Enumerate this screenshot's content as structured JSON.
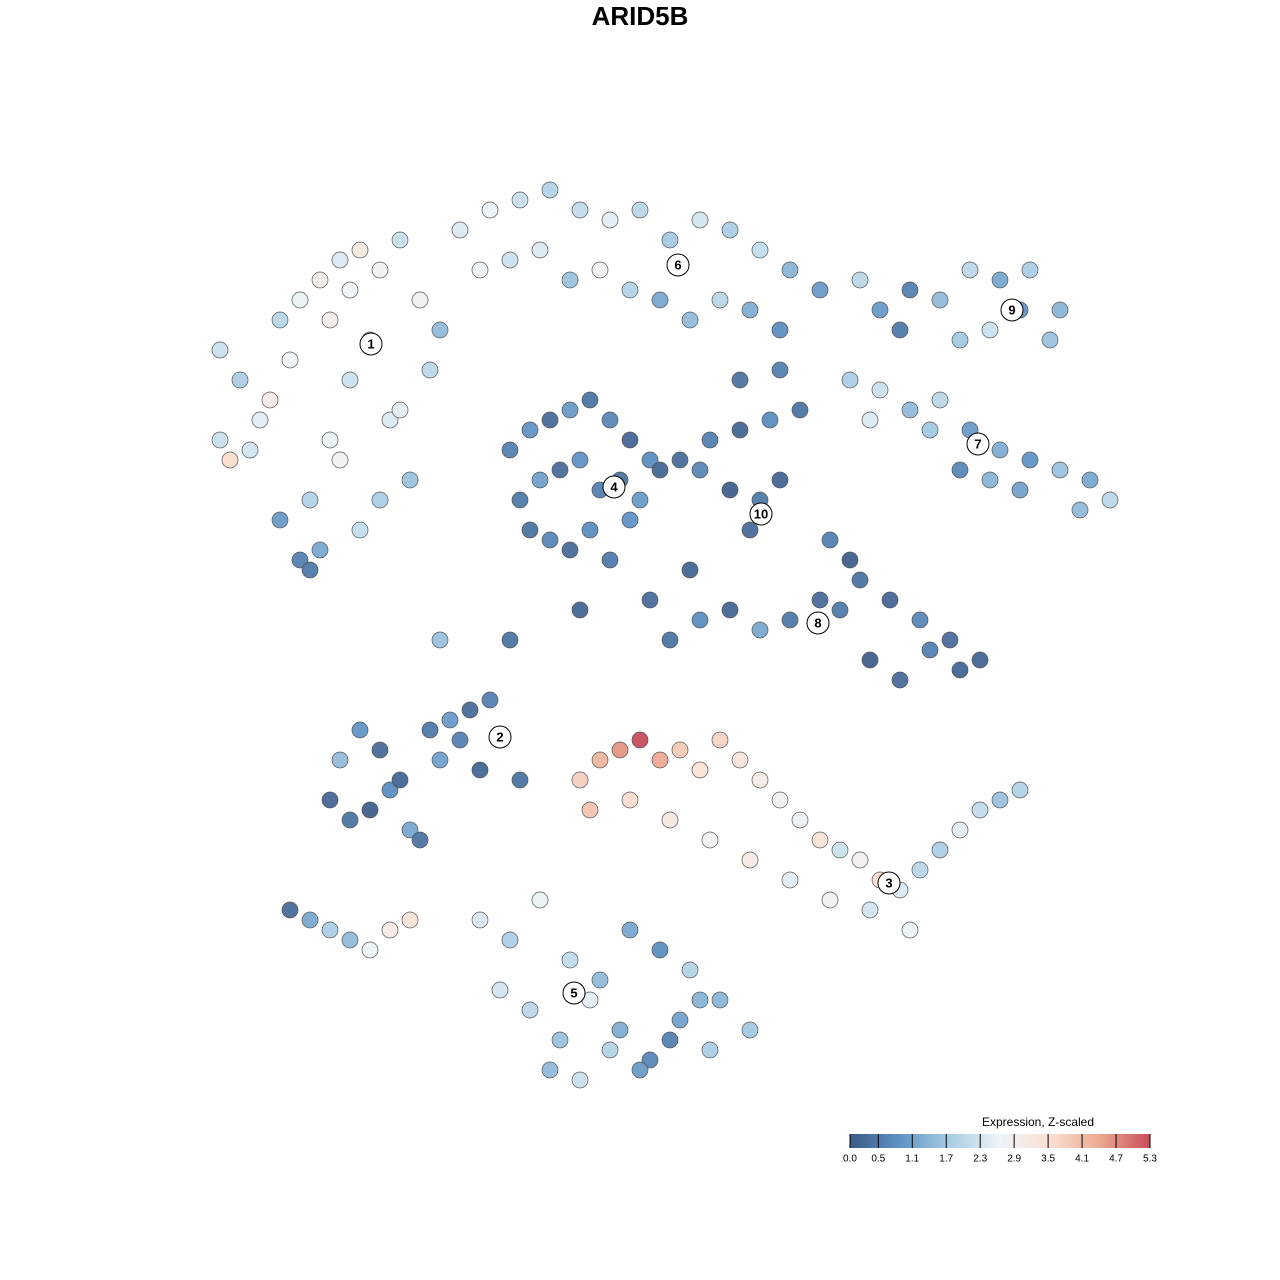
{
  "chart_data": {
    "type": "scatter",
    "title": "ARID5B",
    "xlim": [
      0,
      128
    ],
    "ylim": [
      128,
      0
    ],
    "x": [
      22,
      24,
      26,
      28,
      30,
      32,
      34,
      36,
      38,
      40,
      42,
      44,
      25,
      27,
      29,
      31,
      33,
      35,
      37,
      39,
      41,
      43,
      28,
      30,
      32,
      34,
      36,
      38,
      40,
      33,
      35,
      31,
      22,
      23,
      46,
      49,
      52,
      55,
      58,
      61,
      64,
      67,
      70,
      73,
      76,
      79,
      82,
      48,
      51,
      54,
      57,
      60,
      63,
      66,
      69,
      72,
      75,
      78,
      88,
      91,
      94,
      97,
      100,
      103,
      106,
      90,
      96,
      99,
      102,
      105,
      85,
      88,
      91,
      94,
      97,
      100,
      103,
      106,
      109,
      111,
      87,
      93,
      96,
      99,
      102,
      108,
      51,
      53,
      55,
      57,
      59,
      61,
      63,
      65,
      52,
      54,
      56,
      58,
      60,
      62,
      64,
      66,
      55,
      57,
      59,
      61,
      63,
      53,
      68,
      71,
      74,
      77,
      80,
      73,
      76,
      75,
      78,
      70,
      67,
      70,
      73,
      76,
      79,
      82,
      85,
      83,
      86,
      89,
      92,
      95,
      98,
      84,
      87,
      90,
      93,
      96,
      33,
      35,
      37,
      39,
      41,
      43,
      45,
      47,
      49,
      34,
      36,
      38,
      40,
      42,
      44,
      46,
      48,
      52,
      58,
      60,
      62,
      64,
      66,
      68,
      70,
      72,
      74,
      76,
      78,
      80,
      82,
      84,
      86,
      88,
      90,
      92,
      94,
      96,
      98,
      100,
      102,
      59,
      63,
      67,
      71,
      75,
      79,
      83,
      87,
      91,
      48,
      51,
      54,
      57,
      60,
      63,
      66,
      69,
      72,
      75,
      50,
      53,
      56,
      59,
      62,
      65,
      68,
      71,
      55,
      58,
      61,
      64,
      67,
      70,
      29,
      31,
      33,
      35,
      37,
      39,
      41,
      44,
      51,
      58,
      65,
      69,
      74,
      78,
      86
    ],
    "y": [
      35,
      38,
      42,
      32,
      30,
      28,
      26,
      25,
      27,
      24,
      30,
      33,
      45,
      40,
      36,
      50,
      44,
      38,
      34,
      42,
      48,
      37,
      52,
      56,
      55,
      46,
      53,
      50,
      41,
      32,
      29,
      57,
      44,
      46,
      23,
      21,
      20,
      19,
      21,
      22,
      21,
      24,
      22,
      23,
      25,
      27,
      29,
      27,
      26,
      25,
      28,
      27,
      29,
      30,
      32,
      30,
      31,
      33,
      31,
      29,
      30,
      27,
      28,
      27,
      31,
      33,
      34,
      33,
      31,
      34,
      38,
      39,
      41,
      40,
      43,
      45,
      46,
      47,
      48,
      50,
      42,
      43,
      47,
      48,
      49,
      51,
      45,
      43,
      42,
      41,
      40,
      42,
      44,
      46,
      50,
      48,
      47,
      46,
      49,
      48,
      50,
      47,
      54,
      55,
      53,
      56,
      52,
      53,
      46,
      44,
      43,
      42,
      41,
      49,
      50,
      53,
      48,
      47,
      64,
      62,
      61,
      63,
      62,
      60,
      56,
      54,
      58,
      60,
      62,
      64,
      66,
      61,
      66,
      68,
      65,
      67,
      80,
      82,
      81,
      79,
      83,
      73,
      72,
      71,
      70,
      76,
      73,
      75,
      78,
      84,
      76,
      74,
      77,
      78,
      78,
      76,
      75,
      74,
      76,
      75,
      77,
      74,
      76,
      78,
      80,
      82,
      84,
      85,
      86,
      88,
      89,
      87,
      85,
      83,
      81,
      80,
      79,
      81,
      80,
      82,
      84,
      86,
      88,
      90,
      91,
      93,
      92,
      94,
      90,
      96,
      98,
      93,
      95,
      97,
      100,
      103,
      99,
      101,
      104,
      100,
      103,
      106,
      102,
      105,
      107,
      108,
      105,
      107,
      104,
      100,
      91,
      92,
      93,
      94,
      95,
      93,
      92,
      64,
      64,
      61,
      60,
      57,
      38,
      37,
      28
    ],
    "values": [
      2.2,
      1.8,
      2.5,
      2.0,
      2.6,
      3.0,
      2.4,
      3.2,
      2.8,
      2.2,
      2.9,
      1.5,
      2.3,
      3.1,
      2.7,
      1.9,
      2.6,
      2.2,
      3.3,
      2.4,
      1.6,
      2.0,
      1.0,
      0.6,
      1.2,
      2.8,
      2.1,
      1.8,
      2.5,
      3.0,
      2.7,
      0.5,
      2.2,
      3.6,
      2.4,
      2.6,
      2.2,
      1.9,
      2.1,
      2.5,
      2.0,
      1.7,
      2.3,
      1.8,
      2.1,
      1.4,
      1.0,
      2.7,
      2.2,
      2.4,
      1.6,
      2.8,
      1.9,
      1.2,
      1.5,
      2.0,
      1.3,
      0.8,
      1.0,
      0.6,
      1.5,
      2.0,
      1.2,
      1.8,
      1.4,
      0.5,
      1.7,
      2.2,
      0.9,
      1.6,
      1.8,
      2.2,
      1.5,
      2.0,
      1.0,
      1.3,
      0.9,
      1.6,
      1.2,
      2.0,
      2.4,
      1.7,
      0.7,
      1.4,
      1.1,
      1.5,
      0.6,
      0.9,
      0.3,
      1.0,
      0.4,
      0.7,
      0.2,
      0.8,
      0.5,
      1.1,
      0.3,
      0.9,
      0.6,
      0.4,
      1.0,
      0.2,
      0.7,
      0.3,
      0.8,
      0.5,
      0.9,
      0.4,
      0.3,
      0.6,
      0.2,
      0.8,
      0.4,
      0.1,
      0.5,
      0.3,
      0.2,
      0.7,
      0.4,
      0.8,
      0.2,
      1.2,
      0.5,
      0.3,
      0.1,
      0.6,
      0.4,
      0.2,
      0.7,
      0.3,
      0.2,
      0.5,
      0.1,
      0.3,
      0.6,
      0.2,
      0.2,
      0.4,
      0.1,
      0.8,
      1.2,
      0.5,
      1.0,
      0.3,
      0.6,
      1.5,
      0.9,
      0.3,
      0.2,
      0.4,
      1.1,
      0.6,
      0.2,
      0.4,
      3.8,
      4.2,
      4.6,
      5.3,
      4.4,
      3.9,
      3.5,
      3.7,
      3.3,
      3.0,
      2.8,
      2.6,
      3.4,
      2.2,
      2.9,
      3.6,
      2.4,
      2.0,
      1.8,
      2.5,
      2.1,
      1.6,
      1.9,
      4.0,
      3.6,
      3.2,
      2.7,
      3.1,
      2.5,
      2.8,
      2.3,
      2.6,
      2.4,
      1.8,
      2.6,
      2.1,
      1.5,
      1.2,
      0.8,
      1.9,
      1.4,
      1.7,
      2.3,
      2.0,
      1.6,
      2.5,
      1.3,
      0.7,
      1.1,
      1.8,
      1.5,
      2.2,
      1.9,
      1.0,
      0.6,
      1.4,
      0.3,
      1.2,
      1.8,
      1.5,
      2.6,
      3.1,
      3.4,
      1.6,
      0.4,
      0.2,
      0.3,
      0.2,
      0.4,
      0.6,
      2.0
    ],
    "annotations": [
      {
        "label": "1",
        "x": 37.1,
        "y": 34.4
      },
      {
        "label": "2",
        "x": 50.0,
        "y": 73.7
      },
      {
        "label": "3",
        "x": 88.9,
        "y": 88.3
      },
      {
        "label": "4",
        "x": 61.4,
        "y": 48.7
      },
      {
        "label": "5",
        "x": 57.4,
        "y": 99.3
      },
      {
        "label": "6",
        "x": 67.8,
        "y": 26.5
      },
      {
        "label": "7",
        "x": 97.8,
        "y": 44.4
      },
      {
        "label": "8",
        "x": 81.8,
        "y": 62.3
      },
      {
        "label": "9",
        "x": 101.2,
        "y": 31.0
      },
      {
        "label": "10",
        "x": 76.1,
        "y": 51.4
      }
    ],
    "colorbar": {
      "title": "Expression, Z-scaled",
      "lim": [
        0,
        5.3
      ],
      "colors": [
        "#3d5a85",
        "#5f93c4",
        "#a8cde4",
        "#eef4f8",
        "#fbe0d2",
        "#eca88f",
        "#c94e5c"
      ],
      "ticks": [
        {
          "value": 0,
          "label": "0.0"
        },
        0.5,
        1.1,
        1.7,
        2.3,
        2.9,
        3.5,
        4.1,
        4.7,
        5.3
      ]
    }
  }
}
